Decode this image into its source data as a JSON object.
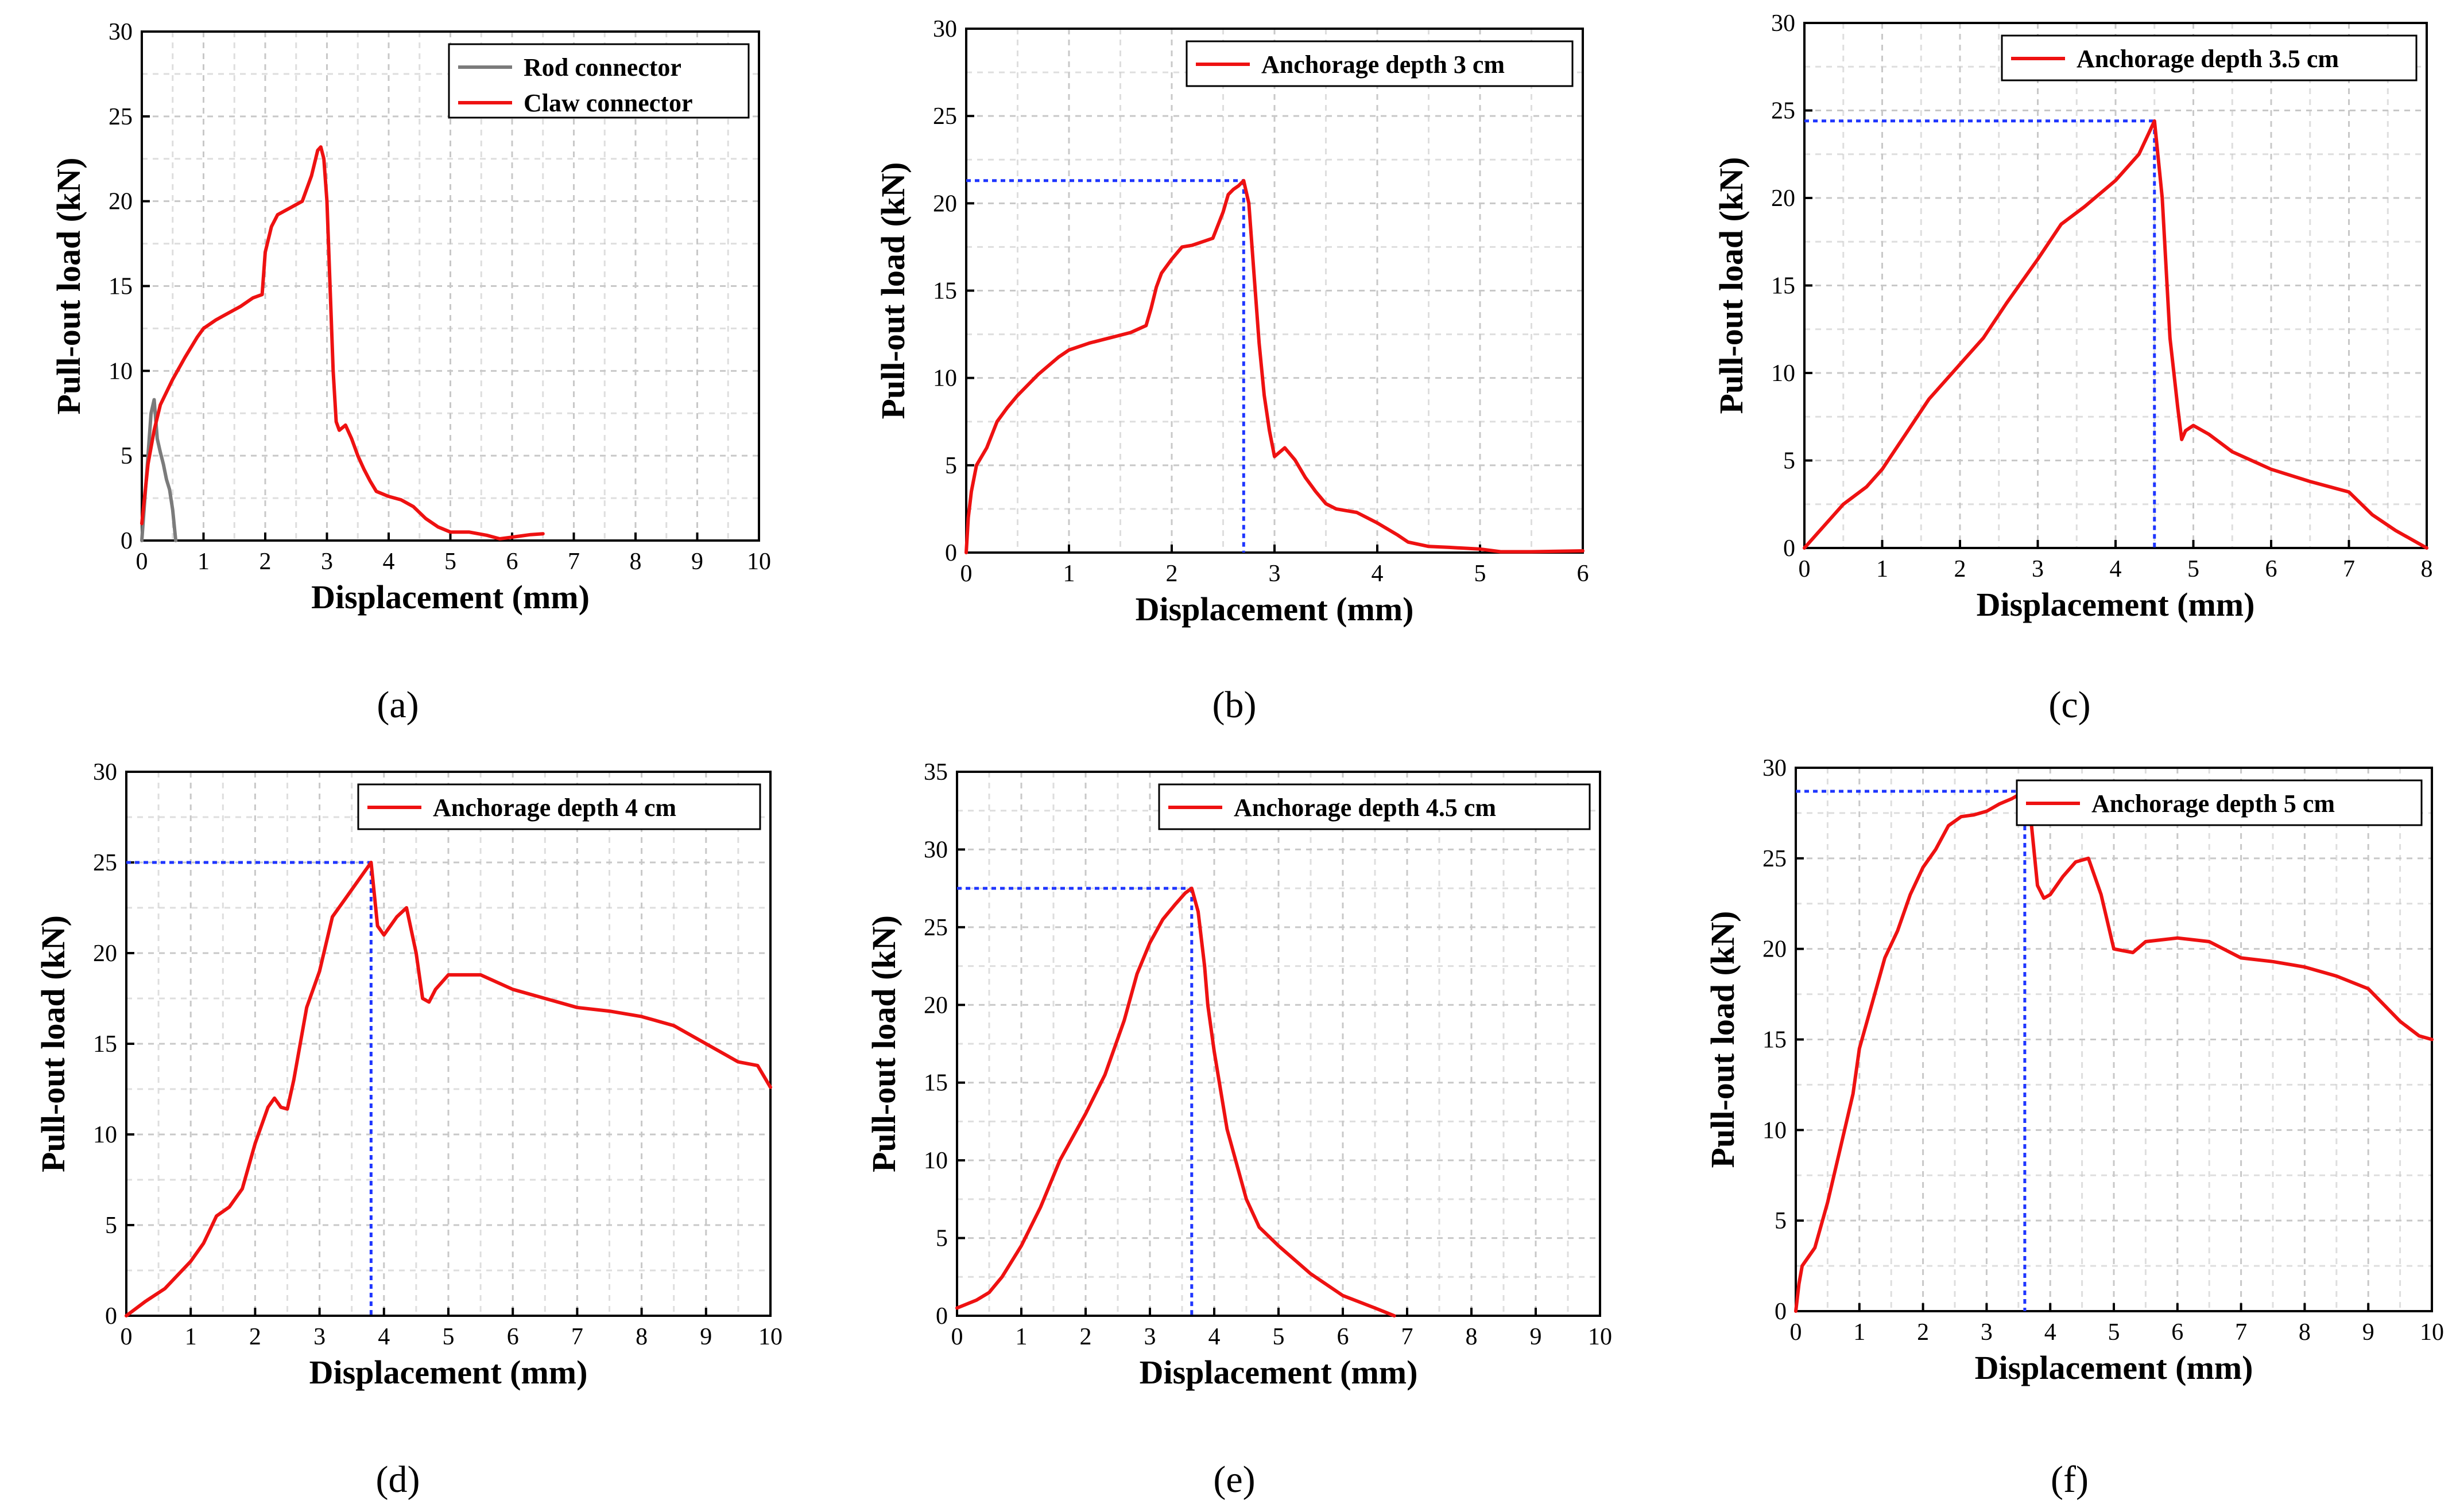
{
  "colors": {
    "red": "#ee1111",
    "gray": "#7b7b7b",
    "blue": "#1f36ff"
  },
  "chart_data": [
    {
      "type": "line",
      "panel": "(a)",
      "caption_letter": "a",
      "xlabel": "Displacement (mm)",
      "ylabel": "Pull-out load (kN)",
      "xlim": [
        0,
        10
      ],
      "ylim": [
        0,
        30
      ],
      "xticks": [
        0,
        1,
        2,
        3,
        4,
        5,
        6,
        7,
        8,
        9,
        10
      ],
      "yticks": [
        0,
        5,
        10,
        15,
        20,
        25,
        30
      ],
      "legend_position": "top-right",
      "series": [
        {
          "name": "Rod connector",
          "color": "gray",
          "x": [
            0,
            0.05,
            0.1,
            0.15,
            0.2,
            0.25,
            0.3,
            0.35,
            0.4,
            0.45,
            0.5,
            0.55
          ],
          "y": [
            0,
            2.5,
            5.0,
            7.5,
            8.3,
            6.0,
            5.2,
            4.5,
            3.6,
            3.0,
            1.8,
            0
          ]
        },
        {
          "name": "Claw connector",
          "color": "red",
          "x": [
            0,
            0.1,
            0.2,
            0.3,
            0.5,
            0.7,
            0.9,
            1.0,
            1.2,
            1.4,
            1.6,
            1.8,
            1.95,
            2.0,
            2.1,
            2.2,
            2.4,
            2.6,
            2.75,
            2.85,
            2.9,
            2.95,
            3.0,
            3.05,
            3.1,
            3.15,
            3.2,
            3.3,
            3.4,
            3.5,
            3.6,
            3.7,
            3.8,
            4.0,
            4.2,
            4.4,
            4.6,
            4.8,
            5.0,
            5.3,
            5.6,
            5.8,
            6.0,
            6.3,
            6.5
          ],
          "y": [
            1.0,
            4.5,
            6.5,
            8.0,
            9.5,
            10.8,
            12.0,
            12.5,
            13.0,
            13.4,
            13.8,
            14.3,
            14.5,
            17.0,
            18.5,
            19.2,
            19.6,
            20.0,
            21.5,
            23.0,
            23.2,
            22.5,
            20.0,
            15.0,
            10.0,
            7.0,
            6.5,
            6.8,
            6.0,
            5.0,
            4.2,
            3.5,
            2.9,
            2.6,
            2.4,
            2.0,
            1.3,
            0.8,
            0.5,
            0.5,
            0.3,
            0.1,
            0.2,
            0.35,
            0.4
          ]
        }
      ]
    },
    {
      "type": "line",
      "panel": "(b)",
      "caption_letter": "b",
      "xlabel": "Displacement (mm)",
      "ylabel": "Pull-out load (kN)",
      "xlim": [
        0,
        6
      ],
      "ylim": [
        0,
        30
      ],
      "xticks": [
        0,
        1,
        2,
        3,
        4,
        5,
        6
      ],
      "yticks": [
        0,
        5,
        10,
        15,
        20,
        25,
        30
      ],
      "legend_position": "top-right",
      "peak": {
        "x": 2.7,
        "y": 21.3
      },
      "series": [
        {
          "name": "Anchorage depth 3 cm",
          "color": "red",
          "x": [
            0,
            0.02,
            0.05,
            0.1,
            0.2,
            0.3,
            0.4,
            0.5,
            0.7,
            0.9,
            1.0,
            1.2,
            1.4,
            1.6,
            1.75,
            1.8,
            1.85,
            1.9,
            2.0,
            2.1,
            2.2,
            2.3,
            2.4,
            2.5,
            2.55,
            2.6,
            2.65,
            2.7,
            2.75,
            2.8,
            2.85,
            2.9,
            2.95,
            3.0,
            3.1,
            3.2,
            3.3,
            3.4,
            3.5,
            3.6,
            3.8,
            4.0,
            4.2,
            4.3,
            4.5,
            4.7,
            5.0,
            5.2,
            5.5,
            6.0
          ],
          "y": [
            0,
            2.0,
            3.5,
            5.0,
            6.0,
            7.5,
            8.3,
            9.0,
            10.2,
            11.2,
            11.6,
            12.0,
            12.3,
            12.6,
            13.0,
            14.0,
            15.2,
            16.0,
            16.8,
            17.5,
            17.6,
            17.8,
            18.0,
            19.5,
            20.5,
            20.8,
            21.0,
            21.3,
            20.0,
            16.0,
            12.0,
            9.0,
            7.0,
            5.5,
            6.0,
            5.3,
            4.3,
            3.5,
            2.8,
            2.5,
            2.3,
            1.7,
            1.0,
            0.6,
            0.35,
            0.3,
            0.2,
            0.05,
            0.05,
            0.1
          ]
        }
      ]
    },
    {
      "type": "line",
      "panel": "(c)",
      "caption_letter": "c",
      "xlabel": "Displacement (mm)",
      "ylabel": "Pull-out load (kN)",
      "xlim": [
        0,
        8
      ],
      "ylim": [
        0,
        30
      ],
      "xticks": [
        0,
        1,
        2,
        3,
        4,
        5,
        6,
        7,
        8
      ],
      "yticks": [
        0,
        5,
        10,
        15,
        20,
        25,
        30
      ],
      "legend_position": "top-right",
      "peak": {
        "x": 4.5,
        "y": 24.4
      },
      "series": [
        {
          "name": "Anchorage depth 3.5 cm",
          "color": "red",
          "x": [
            0,
            0.2,
            0.5,
            0.8,
            1.0,
            1.3,
            1.6,
            2.0,
            2.3,
            2.6,
            3.0,
            3.3,
            3.6,
            4.0,
            4.3,
            4.5,
            4.6,
            4.7,
            4.8,
            4.85,
            4.9,
            5.0,
            5.2,
            5.5,
            6.0,
            6.5,
            7.0,
            7.3,
            7.6,
            8.0
          ],
          "y": [
            0,
            1.0,
            2.5,
            3.5,
            4.5,
            6.5,
            8.5,
            10.5,
            12.0,
            14.0,
            16.5,
            18.5,
            19.5,
            21.0,
            22.5,
            24.4,
            20.0,
            12.0,
            8.0,
            6.2,
            6.7,
            7.0,
            6.5,
            5.5,
            4.5,
            3.8,
            3.2,
            1.9,
            1.0,
            0
          ]
        }
      ]
    },
    {
      "type": "line",
      "panel": "(d)",
      "caption_letter": "d",
      "xlabel": "Displacement (mm)",
      "ylabel": "Pull-out load (kN)",
      "xlim": [
        0,
        10
      ],
      "ylim": [
        0,
        30
      ],
      "xticks": [
        0,
        1,
        2,
        3,
        4,
        5,
        6,
        7,
        8,
        9,
        10
      ],
      "yticks": [
        0,
        5,
        10,
        15,
        20,
        25,
        30
      ],
      "legend_position": "top-right",
      "peak": {
        "x": 3.8,
        "y": 25.0
      },
      "series": [
        {
          "name": "Anchorage depth 4 cm",
          "color": "red",
          "x": [
            0,
            0.3,
            0.6,
            1.0,
            1.2,
            1.4,
            1.6,
            1.8,
            2.0,
            2.2,
            2.3,
            2.4,
            2.5,
            2.6,
            2.8,
            3.0,
            3.2,
            3.4,
            3.6,
            3.8,
            3.9,
            4.0,
            4.1,
            4.2,
            4.35,
            4.5,
            4.6,
            4.7,
            4.8,
            5.0,
            5.5,
            6.0,
            6.5,
            7.0,
            7.5,
            8.0,
            8.5,
            9.0,
            9.5,
            9.8,
            10.0
          ],
          "y": [
            0,
            0.8,
            1.5,
            3.0,
            4.0,
            5.5,
            6.0,
            7.0,
            9.5,
            11.5,
            12.0,
            11.5,
            11.4,
            13.0,
            17.0,
            19.0,
            22.0,
            23.0,
            24.0,
            25.0,
            21.5,
            21.0,
            21.5,
            22.0,
            22.5,
            20.0,
            17.5,
            17.3,
            18.0,
            18.8,
            18.8,
            18.0,
            17.5,
            17.0,
            16.8,
            16.5,
            16.0,
            15.0,
            14.0,
            13.8,
            12.6
          ]
        }
      ]
    },
    {
      "type": "line",
      "panel": "(e)",
      "caption_letter": "e",
      "xlabel": "Displacement (mm)",
      "ylabel": "Pull-out load (kN)",
      "xlim": [
        0,
        10
      ],
      "ylim": [
        0,
        35
      ],
      "xticks": [
        0,
        1,
        2,
        3,
        4,
        5,
        6,
        7,
        8,
        9,
        10
      ],
      "yticks": [
        0,
        5,
        10,
        15,
        20,
        25,
        30,
        35
      ],
      "legend_position": "top-right",
      "peak": {
        "x": 3.65,
        "y": 27.5
      },
      "series": [
        {
          "name": "Anchorage depth 4.5 cm",
          "color": "red",
          "x": [
            0,
            0.3,
            0.5,
            0.7,
            1.0,
            1.3,
            1.6,
            2.0,
            2.3,
            2.6,
            2.8,
            3.0,
            3.2,
            3.4,
            3.55,
            3.65,
            3.75,
            3.85,
            3.9,
            4.0,
            4.2,
            4.5,
            4.7,
            5.0,
            5.5,
            6.0,
            6.5,
            6.8
          ],
          "y": [
            0.5,
            1.0,
            1.5,
            2.5,
            4.5,
            7.0,
            10.0,
            13.0,
            15.5,
            19.0,
            22.0,
            24.0,
            25.5,
            26.5,
            27.2,
            27.5,
            26.0,
            22.5,
            20.0,
            17.0,
            12.0,
            7.5,
            5.7,
            4.5,
            2.7,
            1.3,
            0.5,
            0
          ]
        }
      ]
    },
    {
      "type": "line",
      "panel": "(f)",
      "caption_letter": "f",
      "xlabel": "Displacement (mm)",
      "ylabel": "Pull-out load (kN)",
      "xlim": [
        0,
        10
      ],
      "ylim": [
        0,
        30
      ],
      "xticks": [
        0,
        1,
        2,
        3,
        4,
        5,
        6,
        7,
        8,
        9,
        10
      ],
      "yticks": [
        0,
        5,
        10,
        15,
        20,
        25,
        30
      ],
      "legend_position": "top-right",
      "peak": {
        "x": 3.6,
        "y": 28.7
      },
      "series": [
        {
          "name": "Anchorage depth 5 cm",
          "color": "red",
          "x": [
            0,
            0.05,
            0.1,
            0.3,
            0.5,
            0.7,
            0.9,
            1.0,
            1.2,
            1.4,
            1.6,
            1.8,
            2.0,
            2.2,
            2.4,
            2.6,
            2.8,
            3.0,
            3.2,
            3.4,
            3.6,
            3.7,
            3.8,
            3.9,
            4.0,
            4.2,
            4.4,
            4.6,
            4.8,
            5.0,
            5.3,
            5.5,
            6.0,
            6.5,
            7.0,
            7.5,
            8.0,
            8.5,
            9.0,
            9.5,
            9.8,
            10.0
          ],
          "y": [
            0,
            1.5,
            2.5,
            3.5,
            6.0,
            9.0,
            12.0,
            14.5,
            17.0,
            19.5,
            21.0,
            23.0,
            24.5,
            25.5,
            26.8,
            27.3,
            27.4,
            27.6,
            28.0,
            28.3,
            28.7,
            27.0,
            23.5,
            22.8,
            23.0,
            24.0,
            24.8,
            25.0,
            23.0,
            20.0,
            19.8,
            20.4,
            20.6,
            20.4,
            19.5,
            19.3,
            19.0,
            18.5,
            17.8,
            16.0,
            15.2,
            15.0
          ]
        }
      ]
    }
  ]
}
